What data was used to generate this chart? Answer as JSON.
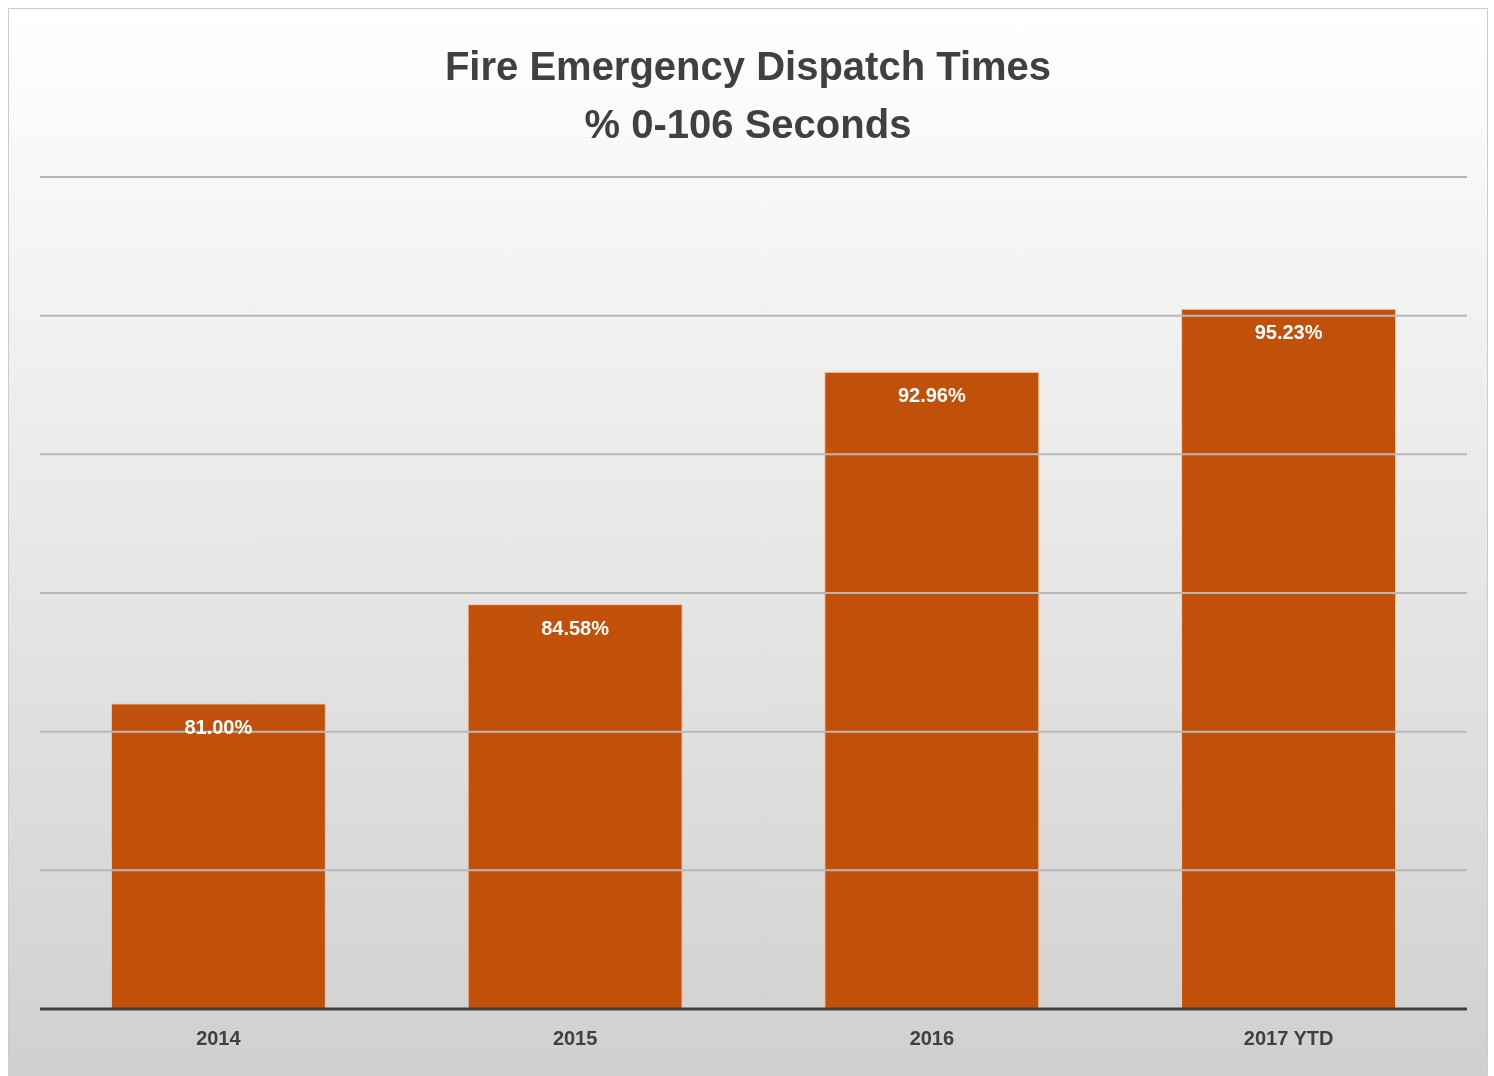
{
  "chart_data": {
    "type": "bar",
    "title": "Fire Emergency Dispatch Times\n% 0-106 Seconds",
    "categories": [
      "2014",
      "2015",
      "2016",
      "2017 YTD"
    ],
    "values": [
      81.0,
      84.58,
      92.96,
      95.23
    ],
    "value_labels": [
      "81.00%",
      "84.58%",
      "92.96%",
      "95.23%"
    ],
    "color": "#c0500a",
    "ylim": [
      70,
      100
    ],
    "yticks": [
      {
        "value": 70,
        "label": null
      },
      {
        "value": 75,
        "label": null
      },
      {
        "value": 80,
        "label": null
      },
      {
        "value": 85,
        "label": null
      },
      {
        "value": 90,
        "label": null
      },
      {
        "value": 95,
        "label": null
      },
      {
        "value": 100,
        "label": null
      }
    ],
    "tick_labels": "x",
    "grid": "y",
    "legend": false
  }
}
